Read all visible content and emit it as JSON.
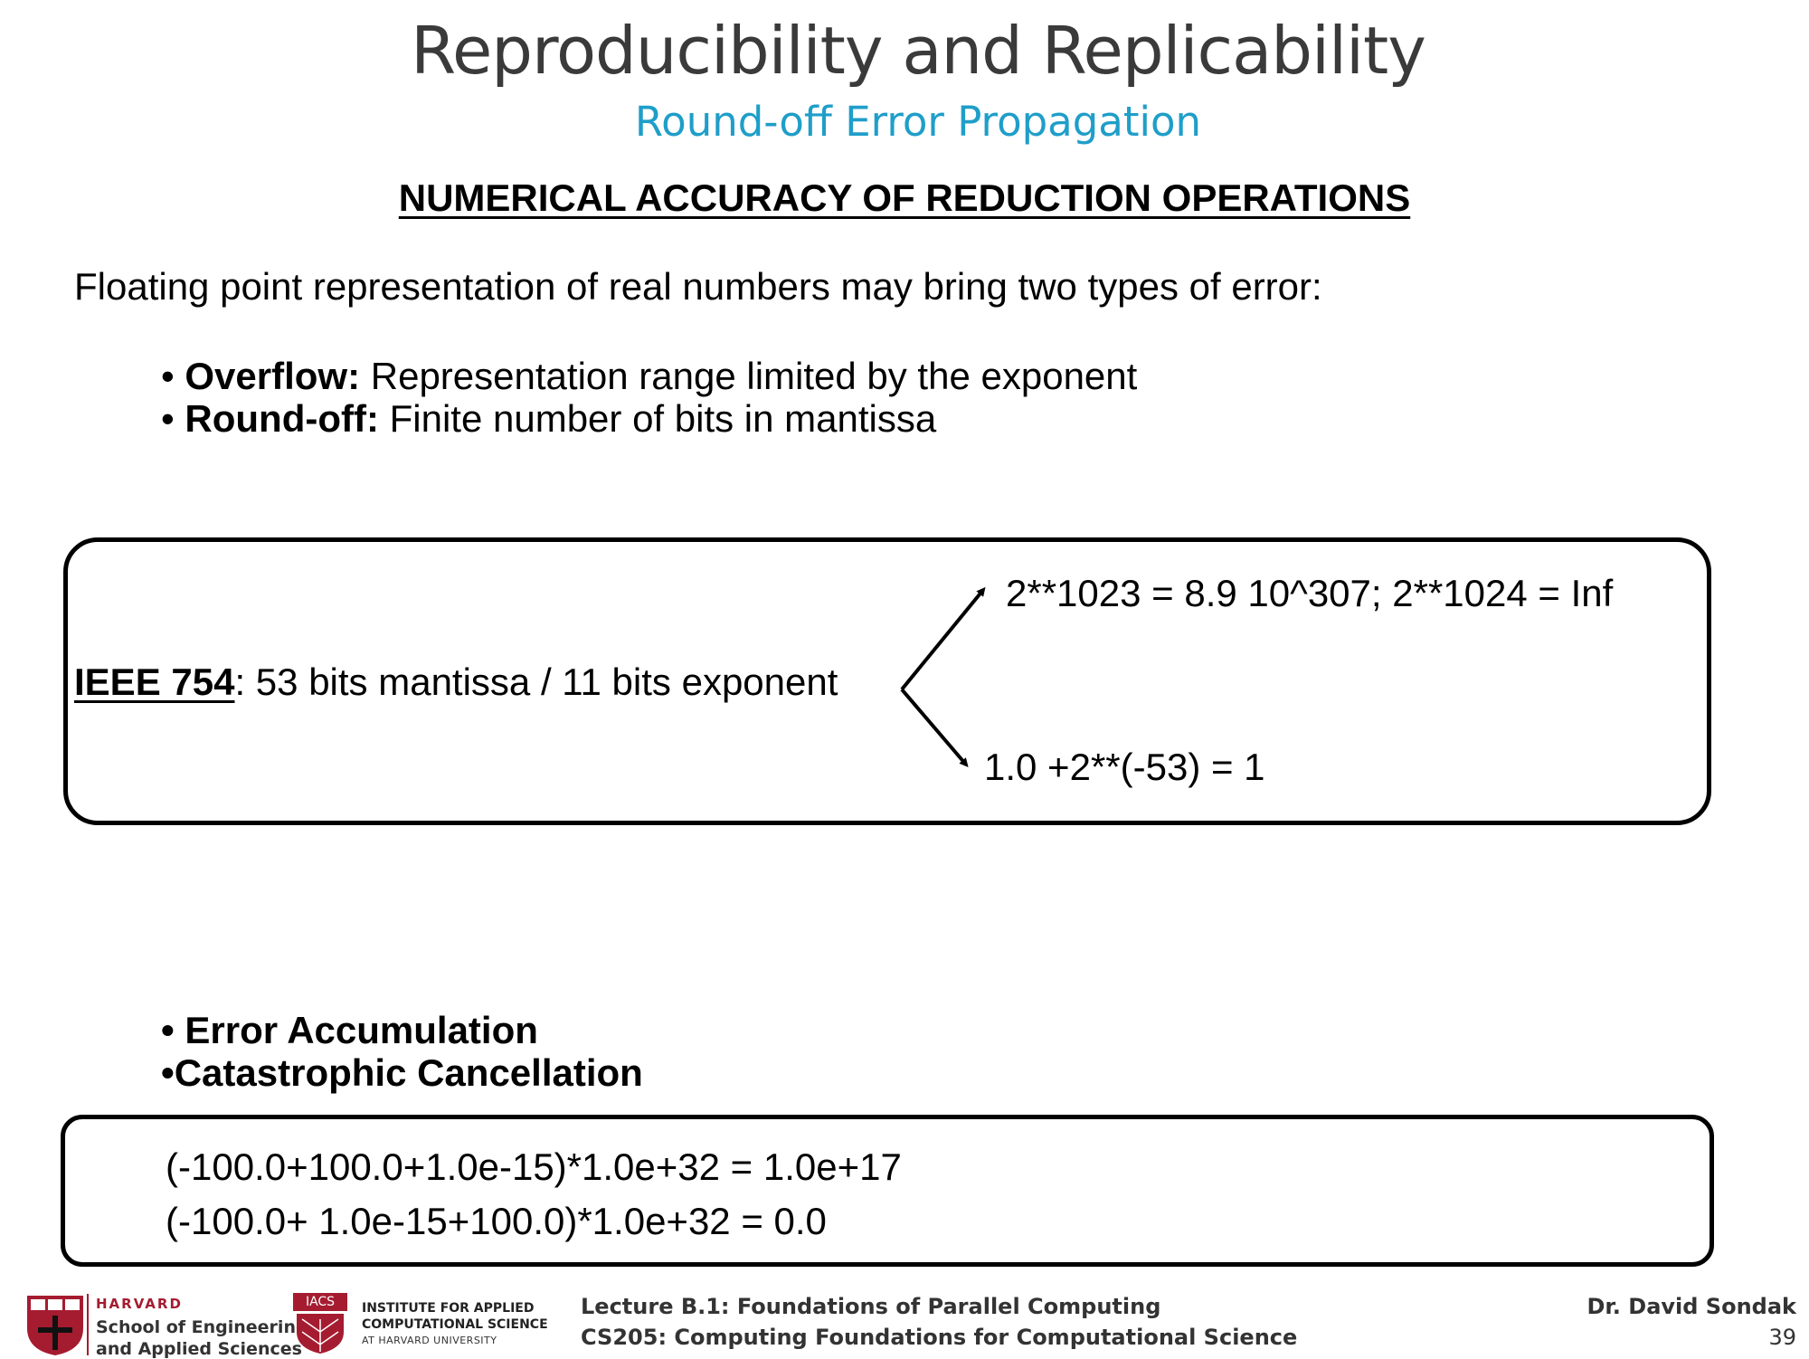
{
  "slide": {
    "title": "Reproducibility and Replicability",
    "subtitle": "Round-off Error Propagation",
    "heading": "NUMERICAL ACCURACY OF REDUCTION OPERATIONS",
    "intro": "Floating point representation of real numbers may bring two types of error:",
    "bullets": [
      {
        "term": "Overflow:",
        "text": " Representation range limited by the exponent"
      },
      {
        "term": "Round-off:",
        "text": " Finite number of bits in mantissa"
      }
    ],
    "ieee_box": {
      "label": "IEEE 754",
      "description": ": 53 bits mantissa / 11 bits exponent",
      "overflow_example": "2**1023 = 8.9 10^307; 2**1024 = Inf",
      "roundoff_example": "1.0 +2**(-53) = 1"
    },
    "bullets2": [
      "Error Accumulation",
      "Catastrophic Cancellation"
    ],
    "examples": [
      "(-100.0+100.0+1.0e-15)*1.0e+32 = 1.0e+17",
      "(-100.0+ 1.0e-15+100.0)*1.0e+32 = 0.0"
    ],
    "bullet_glyph": "•"
  },
  "footer": {
    "harvard_name": "HARVARD",
    "harvard_school_1": "School of Engineering",
    "harvard_school_2": "and Applied Sciences",
    "iacs_tag": "IACS",
    "iacs_line1": "INSTITUTE FOR APPLIED",
    "iacs_line2": "COMPUTATIONAL SCIENCE",
    "iacs_line3": "AT HARVARD UNIVERSITY",
    "lecture": "Lecture B.1: Foundations of Parallel Computing",
    "course": "CS205: Computing Foundations for Computational Science",
    "author": "Dr. David Sondak",
    "page_number": "39"
  },
  "colors": {
    "title": "#3a3a3a",
    "subtitle": "#1f9ec9",
    "harvard_crimson": "#a51c30"
  }
}
